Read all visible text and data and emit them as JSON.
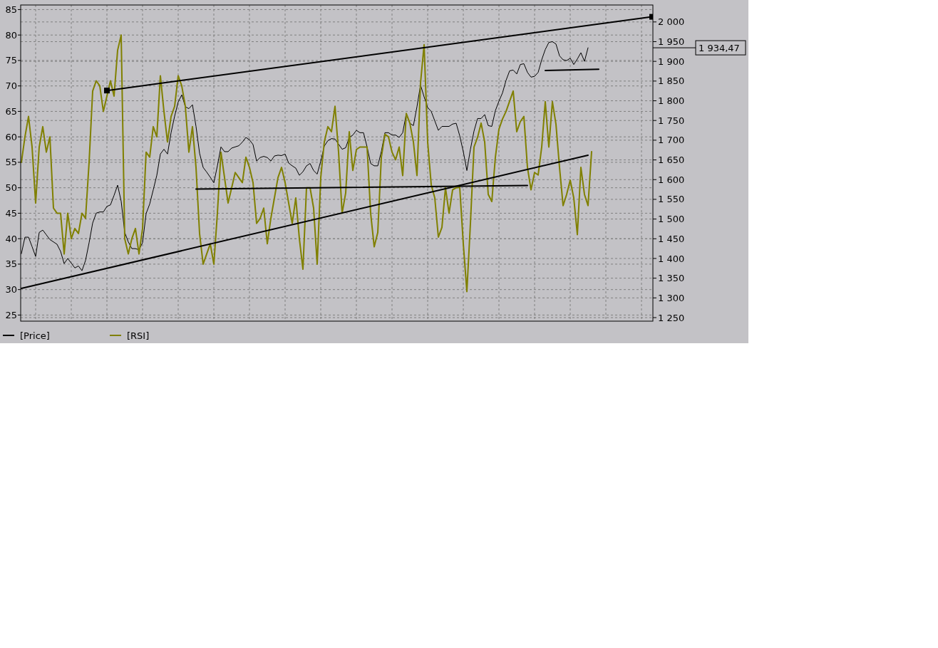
{
  "chart_data": {
    "type": "line",
    "ylim": [
      23.8,
      85.9
    ],
    "y2lim": [
      1241,
      2043
    ],
    "categories": [
      null,
      null,
      null,
      null,
      null,
      null,
      null,
      null,
      null,
      null,
      null,
      null,
      null,
      null,
      null,
      null,
      null,
      null,
      null,
      null,
      null,
      null,
      null,
      null,
      null,
      null,
      null,
      null,
      null,
      null,
      null,
      null,
      null,
      null,
      null,
      null,
      null,
      null,
      null,
      null,
      null,
      null,
      null,
      null,
      null,
      null,
      null,
      null,
      null,
      null,
      null,
      null,
      null,
      null,
      null,
      null,
      null,
      null,
      null,
      null,
      null,
      null,
      null,
      null,
      null,
      null,
      null,
      null,
      null,
      null,
      null,
      null,
      null,
      null,
      null,
      null,
      null,
      null,
      null,
      null,
      null,
      null,
      null,
      null,
      null,
      null,
      null,
      null,
      null,
      null,
      null,
      null,
      null,
      null,
      null,
      null,
      null,
      null,
      null,
      null,
      null,
      null,
      null,
      null,
      null,
      null,
      null,
      null,
      null,
      null,
      null,
      null,
      null,
      null,
      null,
      null,
      null,
      null,
      null,
      null,
      null,
      null,
      null,
      null,
      null,
      null,
      null,
      null,
      null,
      null,
      null,
      null,
      null,
      null,
      null,
      null,
      null,
      null,
      null,
      null,
      null,
      null,
      null,
      null,
      null,
      null,
      null,
      null,
      null,
      null,
      null,
      null,
      null,
      null,
      null,
      null,
      null,
      null,
      null,
      null,
      null,
      null,
      null,
      null,
      null,
      null,
      null,
      null,
      null,
      null,
      null,
      null,
      null,
      null,
      null,
      null,
      null,
      null
    ],
    "yticks": [
      25,
      30,
      35,
      40,
      45,
      50,
      55,
      60,
      65,
      70,
      75,
      80,
      85
    ],
    "y2ticks": [
      {
        "value": 1250,
        "label": "1 250"
      },
      {
        "value": 1300,
        "label": "1 300"
      },
      {
        "value": 1350,
        "label": "1 350"
      },
      {
        "value": 1400,
        "label": "1 400"
      },
      {
        "value": 1450,
        "label": "1 450"
      },
      {
        "value": 1500,
        "label": "1 500"
      },
      {
        "value": 1550,
        "label": "1 550"
      },
      {
        "value": 1600,
        "label": "1 600"
      },
      {
        "value": 1650,
        "label": "1 650"
      },
      {
        "value": 1700,
        "label": "1 700"
      },
      {
        "value": 1750,
        "label": "1 750"
      },
      {
        "value": 1800,
        "label": "1 800"
      },
      {
        "value": 1850,
        "label": "1 850"
      },
      {
        "value": 1900,
        "label": "1 900"
      },
      {
        "value": 1950,
        "label": "1 950"
      },
      {
        "value": 2000,
        "label": "2 000"
      }
    ],
    "grid": true,
    "legend": "bottom left",
    "line_style": "solid",
    "marker": "none",
    "annotations": [
      "1 934,47"
    ],
    "series": [
      {
        "name": "[Price]",
        "color": "#000000",
        "axis": "y2",
        "values": [
          1412,
          1454,
          1454,
          1430,
          1405,
          1466,
          1472,
          1460,
          1448,
          1442,
          1436,
          1418,
          1387,
          1400,
          1388,
          1376,
          1381,
          1369,
          1395,
          1440,
          1490,
          1515,
          1518,
          1518,
          1532,
          1536,
          1560,
          1586,
          1545,
          1466,
          1442,
          1425,
          1425,
          1422,
          1440,
          1514,
          1538,
          1574,
          1611,
          1665,
          1677,
          1665,
          1719,
          1761,
          1797,
          1815,
          1785,
          1780,
          1790,
          1735,
          1667,
          1631,
          1619,
          1606,
          1592,
          1635,
          1683,
          1671,
          1671,
          1680,
          1683,
          1686,
          1695,
          1707,
          1701,
          1689,
          1647,
          1656,
          1659,
          1656,
          1647,
          1660,
          1662,
          1661,
          1665,
          1642,
          1635,
          1629,
          1611,
          1620,
          1635,
          1641,
          1623,
          1614,
          1647,
          1685,
          1699,
          1704,
          1703,
          1690,
          1677,
          1681,
          1707,
          1713,
          1725,
          1719,
          1719,
          1683,
          1641,
          1635,
          1635,
          1671,
          1719,
          1719,
          1713,
          1713,
          1707,
          1719,
          1767,
          1743,
          1737,
          1785,
          1840,
          1810,
          1783,
          1773,
          1749,
          1725,
          1735,
          1735,
          1735,
          1741,
          1743,
          1711,
          1671,
          1623,
          1677,
          1723,
          1755,
          1755,
          1765,
          1737,
          1735,
          1775,
          1799,
          1820,
          1852,
          1876,
          1878,
          1868,
          1892,
          1894,
          1872,
          1860,
          1862,
          1872,
          1904,
          1930,
          1948,
          1950,
          1944,
          1914,
          1904,
          1902,
          1908,
          1892,
          1906,
          1922,
          1900,
          1934.47,
          null,
          null,
          null,
          null,
          null,
          null,
          null,
          null,
          null,
          null,
          null,
          null,
          null,
          null,
          null,
          null,
          null,
          null
        ]
      },
      {
        "name": "[RSI]",
        "color": "#808000",
        "axis": "y",
        "values": [
          55,
          60,
          64,
          58,
          47,
          58,
          62,
          57,
          60,
          46,
          45,
          45,
          37,
          45,
          40,
          42,
          41,
          45,
          44,
          55,
          69,
          71,
          70,
          65,
          68,
          71,
          68,
          77,
          80,
          40,
          37,
          40,
          42,
          37,
          42,
          57,
          56,
          62,
          60,
          72,
          65,
          59,
          64,
          66,
          72,
          70,
          66,
          57,
          62,
          54,
          41,
          35,
          37,
          39,
          35,
          45,
          57,
          52,
          47,
          50,
          53,
          52,
          51,
          56,
          54,
          51,
          43,
          44,
          46,
          39,
          44,
          48,
          52,
          54,
          51,
          47,
          43,
          48,
          40,
          34,
          50,
          50,
          46,
          35,
          52,
          59,
          62,
          61,
          66,
          57,
          45,
          49,
          61,
          53.4,
          57.5,
          58,
          58,
          58,
          45,
          38.4,
          41.2,
          56,
          60.5,
          60,
          57,
          55.5,
          58,
          52.4,
          64.6,
          62.7,
          59,
          52.4,
          70.6,
          78.1,
          59,
          50.6,
          48,
          40.3,
          42.2,
          50,
          45,
          49.6,
          50,
          50.1,
          39,
          29.6,
          43,
          58,
          59.9,
          62.7,
          59,
          48.7,
          47.3,
          56,
          61.5,
          63.5,
          65,
          67,
          69,
          61,
          63,
          64,
          54,
          49.6,
          53,
          52.5,
          58,
          66.9,
          58,
          66.9,
          62.5,
          54,
          46.5,
          48.7,
          51.5,
          48,
          40.8,
          54,
          48.7,
          46.5,
          57.1,
          null,
          null,
          null,
          null,
          null,
          null,
          null,
          null,
          null,
          null,
          null,
          null,
          null,
          null,
          null,
          null,
          null
        ]
      },
      {
        "color": "#000000",
        "axis": "y2",
        "marker": "square",
        "values": [
          null,
          null,
          null,
          null,
          null,
          null,
          null,
          null,
          null,
          null,
          null,
          null,
          null,
          null,
          null,
          null,
          null,
          null,
          null,
          null,
          null,
          null,
          null,
          null,
          1826,
          null,
          null,
          null,
          null,
          null,
          null,
          null,
          null,
          null,
          null,
          null,
          null,
          null,
          null,
          null,
          null,
          null,
          null,
          null,
          null,
          null,
          null,
          null,
          null,
          null,
          null,
          null,
          null,
          null,
          null,
          null,
          null,
          null,
          null,
          null,
          null,
          null,
          null,
          null,
          null,
          null,
          null,
          null,
          null,
          null,
          null,
          null,
          null,
          null,
          null,
          null,
          null,
          null,
          null,
          null,
          null,
          null,
          null,
          null,
          null,
          null,
          null,
          null,
          null,
          null,
          null,
          null,
          null,
          null,
          null,
          null,
          null,
          null,
          null,
          null,
          null,
          null,
          null,
          null,
          null,
          null,
          null,
          null,
          null,
          null,
          null,
          null,
          null,
          null,
          null,
          null,
          null,
          null,
          null,
          null,
          null,
          null,
          null,
          null,
          null,
          null,
          null,
          null,
          null,
          null,
          null,
          null,
          null,
          null,
          null,
          null,
          null,
          null,
          null,
          null,
          null,
          null,
          null,
          null,
          null,
          null,
          null,
          null,
          null,
          null,
          null,
          null,
          null,
          null,
          null,
          null,
          null,
          null,
          null,
          null,
          null,
          null,
          null,
          null,
          null,
          null,
          null,
          null,
          null,
          null,
          null,
          null,
          null,
          null,
          null,
          null,
          null,
          2013
        ]
      },
      {
        "color": "#000000",
        "axis": "y2",
        "values": [
          1324,
          null,
          null,
          null,
          null,
          null,
          null,
          null,
          null,
          null,
          null,
          null,
          null,
          null,
          null,
          null,
          null,
          null,
          null,
          null,
          null,
          null,
          null,
          null,
          null,
          null,
          null,
          null,
          null,
          null,
          null,
          null,
          null,
          null,
          null,
          null,
          null,
          null,
          null,
          null,
          null,
          null,
          null,
          null,
          null,
          null,
          null,
          null,
          null,
          null,
          null,
          null,
          null,
          null,
          null,
          null,
          null,
          null,
          null,
          null,
          null,
          null,
          null,
          null,
          null,
          null,
          null,
          null,
          null,
          null,
          null,
          null,
          null,
          null,
          null,
          null,
          null,
          null,
          null,
          null,
          null,
          null,
          null,
          null,
          null,
          null,
          null,
          null,
          null,
          null,
          null,
          null,
          null,
          null,
          null,
          null,
          null,
          null,
          null,
          null,
          null,
          null,
          null,
          null,
          null,
          null,
          null,
          null,
          null,
          null,
          null,
          null,
          null,
          null,
          null,
          null,
          null,
          null,
          null,
          null,
          null,
          null,
          null,
          null,
          null,
          null,
          null,
          null,
          null,
          null,
          null,
          null,
          null,
          null,
          null,
          null,
          null,
          null,
          null,
          null,
          null,
          null,
          null,
          null,
          null,
          null,
          null,
          null,
          null,
          null,
          null,
          null,
          null,
          null,
          null,
          null,
          null,
          null,
          null,
          1662,
          null,
          null,
          null,
          null,
          null,
          null,
          null,
          null,
          null,
          null,
          null,
          null,
          null,
          null,
          null,
          null,
          null,
          null
        ]
      },
      {
        "color": "#000000",
        "axis": "y2",
        "values": [
          null,
          null,
          null,
          null,
          null,
          null,
          null,
          null,
          null,
          null,
          null,
          null,
          null,
          null,
          null,
          null,
          null,
          null,
          null,
          null,
          null,
          null,
          null,
          null,
          null,
          null,
          null,
          null,
          null,
          null,
          null,
          null,
          null,
          null,
          null,
          null,
          null,
          null,
          null,
          null,
          null,
          null,
          null,
          null,
          null,
          null,
          null,
          null,
          null,
          1576,
          null,
          null,
          null,
          null,
          null,
          null,
          null,
          null,
          null,
          null,
          null,
          null,
          null,
          null,
          null,
          null,
          null,
          null,
          null,
          null,
          null,
          null,
          null,
          null,
          null,
          null,
          null,
          null,
          null,
          null,
          null,
          null,
          null,
          null,
          null,
          null,
          null,
          null,
          null,
          null,
          null,
          null,
          null,
          null,
          null,
          null,
          null,
          null,
          null,
          null,
          null,
          null,
          null,
          null,
          null,
          null,
          null,
          null,
          null,
          null,
          null,
          null,
          null,
          null,
          null,
          null,
          null,
          null,
          null,
          null,
          null,
          null,
          null,
          null,
          null,
          null,
          null,
          null,
          null,
          null,
          null,
          null,
          null,
          null,
          null,
          null,
          null,
          null,
          null,
          null,
          null,
          null,
          1585,
          null,
          null,
          null,
          null,
          null,
          null,
          null,
          null,
          null,
          null,
          null,
          null,
          null,
          null,
          null,
          null,
          null,
          null,
          null,
          null,
          null,
          null,
          null,
          null,
          null,
          null,
          null,
          null,
          null,
          null,
          null,
          null,
          null,
          null,
          null
        ]
      },
      {
        "color": "#000000",
        "axis": "y2",
        "values": [
          null,
          null,
          null,
          null,
          null,
          null,
          null,
          null,
          null,
          null,
          null,
          null,
          null,
          null,
          null,
          null,
          null,
          null,
          null,
          null,
          null,
          null,
          null,
          null,
          null,
          null,
          null,
          null,
          null,
          null,
          null,
          null,
          null,
          null,
          null,
          null,
          null,
          null,
          null,
          null,
          null,
          null,
          null,
          null,
          null,
          null,
          null,
          null,
          null,
          null,
          null,
          null,
          null,
          null,
          null,
          null,
          null,
          null,
          null,
          null,
          null,
          null,
          null,
          null,
          null,
          null,
          null,
          null,
          null,
          null,
          null,
          null,
          null,
          null,
          null,
          null,
          null,
          null,
          null,
          null,
          null,
          null,
          null,
          null,
          null,
          null,
          null,
          null,
          null,
          null,
          null,
          null,
          null,
          null,
          null,
          null,
          null,
          null,
          null,
          null,
          null,
          null,
          null,
          null,
          null,
          null,
          null,
          null,
          null,
          null,
          null,
          null,
          null,
          null,
          null,
          null,
          null,
          null,
          null,
          null,
          null,
          null,
          null,
          null,
          null,
          null,
          null,
          null,
          null,
          null,
          null,
          null,
          null,
          null,
          null,
          null,
          null,
          null,
          null,
          null,
          null,
          null,
          null,
          null,
          null,
          null,
          null,
          1877,
          null,
          null,
          null,
          null,
          null,
          null,
          null,
          null,
          null,
          null,
          null,
          null,
          null,
          null,
          1880,
          null,
          null,
          null,
          null,
          null,
          null,
          null,
          null,
          null,
          null,
          null,
          null,
          null,
          null,
          null
        ]
      }
    ]
  }
}
